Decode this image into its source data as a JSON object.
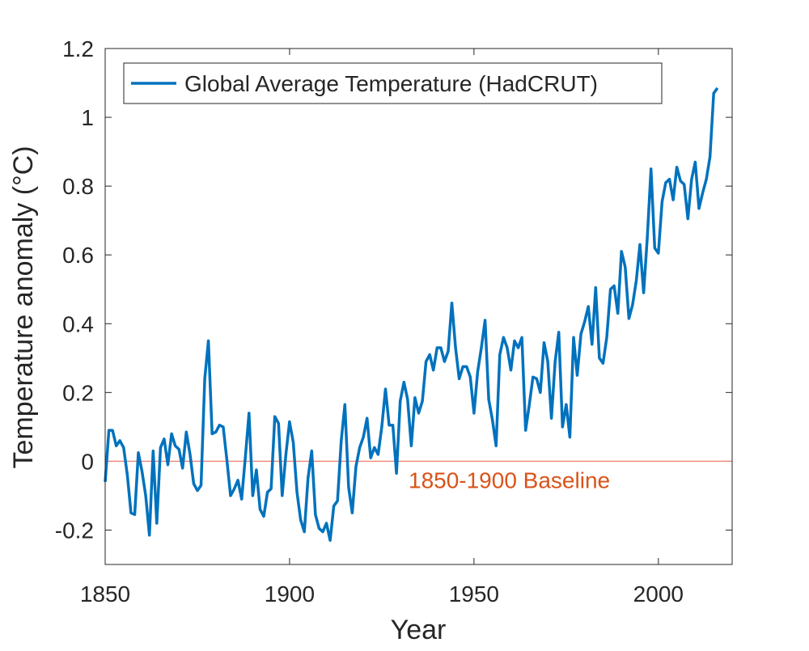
{
  "chart_data": {
    "type": "line",
    "title": "",
    "xlabel": "Year",
    "ylabel": "Temperature anomaly (°C)",
    "xlim": [
      1850,
      2020
    ],
    "ylim": [
      -0.3,
      1.2
    ],
    "xticks": [
      1850,
      1900,
      1950,
      2000
    ],
    "xtick_labels": [
      "1850",
      "1900",
      "1950",
      "2000"
    ],
    "yticks": [
      -0.2,
      0,
      0.2,
      0.4,
      0.6,
      0.8,
      1,
      1.2
    ],
    "ytick_labels": [
      "-0.2",
      "0",
      "0.2",
      "0.4",
      "0.6",
      "0.8",
      "1",
      "1.2"
    ],
    "grid": false,
    "legend_position": "top-left",
    "series": [
      {
        "name": "Global Average Temperature (HadCRUT)",
        "color": "#0072BD",
        "x_start": 1850,
        "values": [
          -0.06,
          0.09,
          0.09,
          0.045,
          0.06,
          0.04,
          -0.04,
          -0.15,
          -0.155,
          0.025,
          -0.03,
          -0.1,
          -0.215,
          0.03,
          -0.18,
          0.04,
          0.065,
          -0.01,
          0.08,
          0.045,
          0.035,
          -0.02,
          0.085,
          0.02,
          -0.065,
          -0.085,
          -0.07,
          0.24,
          0.35,
          0.08,
          0.085,
          0.105,
          0.1,
          0.005,
          -0.1,
          -0.08,
          -0.055,
          -0.11,
          0.01,
          0.14,
          -0.1,
          -0.025,
          -0.14,
          -0.16,
          -0.09,
          -0.08,
          0.13,
          0.11,
          -0.1,
          0.02,
          0.115,
          0.055,
          -0.09,
          -0.17,
          -0.205,
          -0.05,
          0.03,
          -0.155,
          -0.195,
          -0.205,
          -0.18,
          -0.23,
          -0.13,
          -0.115,
          0.06,
          0.165,
          -0.075,
          -0.15,
          -0.015,
          0.04,
          0.07,
          0.125,
          0.01,
          0.04,
          0.02,
          0.1,
          0.21,
          0.105,
          0.105,
          -0.035,
          0.175,
          0.23,
          0.18,
          0.045,
          0.185,
          0.14,
          0.175,
          0.29,
          0.31,
          0.265,
          0.33,
          0.33,
          0.29,
          0.32,
          0.46,
          0.33,
          0.24,
          0.275,
          0.275,
          0.245,
          0.14,
          0.26,
          0.33,
          0.41,
          0.18,
          0.12,
          0.045,
          0.31,
          0.36,
          0.33,
          0.265,
          0.35,
          0.33,
          0.36,
          0.09,
          0.165,
          0.245,
          0.24,
          0.2,
          0.345,
          0.29,
          0.125,
          0.29,
          0.375,
          0.1,
          0.165,
          0.07,
          0.36,
          0.25,
          0.37,
          0.405,
          0.45,
          0.34,
          0.505,
          0.3,
          0.285,
          0.36,
          0.5,
          0.51,
          0.43,
          0.61,
          0.565,
          0.415,
          0.455,
          0.525,
          0.63,
          0.49,
          0.65,
          0.85,
          0.62,
          0.605,
          0.755,
          0.81,
          0.82,
          0.76,
          0.855,
          0.815,
          0.805,
          0.705,
          0.82,
          0.87,
          0.735,
          0.78,
          0.82,
          0.885,
          1.07,
          1.085
        ]
      }
    ],
    "annotations": [
      {
        "text": "1850-1900 Baseline",
        "y": 0,
        "color": "#D95319",
        "line_color": "#F08070"
      }
    ]
  }
}
